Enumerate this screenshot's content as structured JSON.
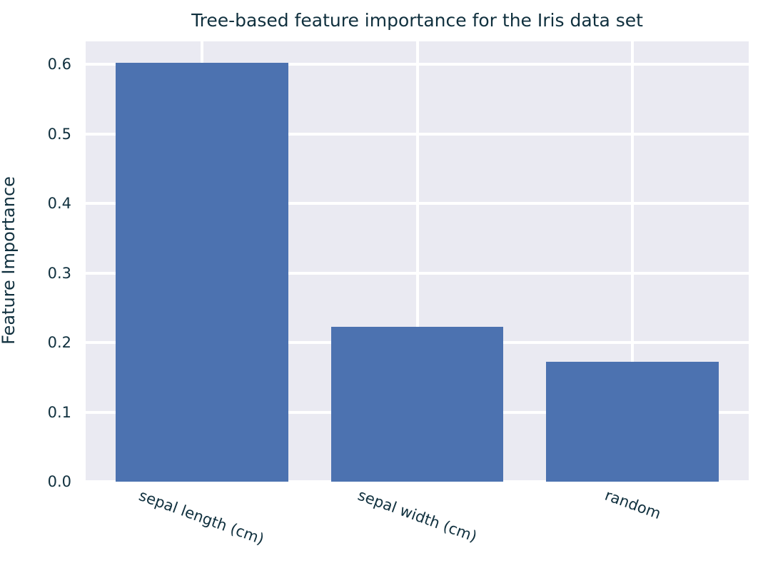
{
  "chart_data": {
    "type": "bar",
    "title": "Tree-based feature importance for the Iris data set",
    "categories": [
      "sepal length (cm)",
      "sepal width (cm)",
      "random"
    ],
    "values": [
      0.602,
      0.223,
      0.172
    ],
    "xlabel": "",
    "ylabel": "Feature Importance",
    "yticks": [
      0.0,
      0.1,
      0.2,
      0.3,
      0.4,
      0.5,
      0.6
    ],
    "ytick_labels": [
      "0.0",
      "0.1",
      "0.2",
      "0.3",
      "0.4",
      "0.5",
      "0.6"
    ],
    "ylim": [
      0,
      0.633
    ],
    "xtick_rotation_deg": 20,
    "grid": true,
    "legend": false,
    "style": {
      "bar_color": "#4c72b0",
      "plot_background": "#eaeaf2",
      "figure_background": "#ffffff",
      "grid_color": "#ffffff",
      "text_color": "#10303e"
    }
  }
}
